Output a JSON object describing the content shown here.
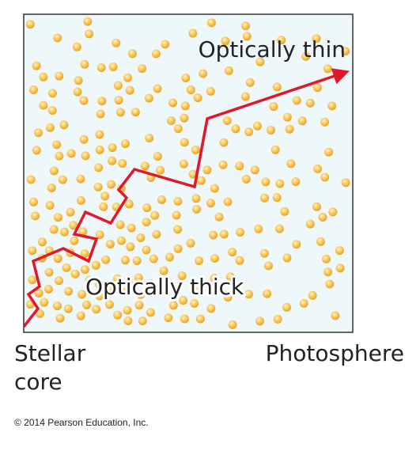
{
  "diagram": {
    "upper_label": "Optically thin",
    "lower_label": "Optically thick",
    "left_label": [
      "Stellar",
      "core"
    ],
    "right_label": "Photosphere",
    "copyright": "© 2014 Pearson Education, Inc."
  }
}
